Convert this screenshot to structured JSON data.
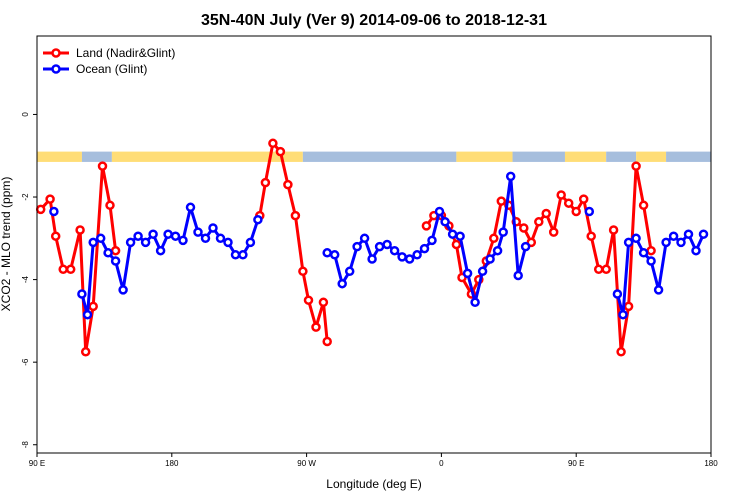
{
  "chart_data": {
    "type": "line",
    "title": "35N-40N July (Ver 9)   2014-09-06 to 2018-12-31",
    "xlabel": "Longitude (deg E)",
    "ylabel": "XCO2 - MLO trend (ppm)",
    "xlim": [
      90,
      450
    ],
    "ylim": [
      -8.2,
      1.9
    ],
    "x_tick_values": [
      90,
      162,
      234,
      306,
      378,
      450
    ],
    "x_tick_labels": [
      "90 E",
      "180",
      "90 W",
      "0",
      "90 E",
      "180"
    ],
    "y_tick_values": [
      -8,
      -6,
      -4,
      -2,
      0
    ],
    "y_tick_labels": [
      "-8",
      "-6",
      "-4",
      "-2",
      "0"
    ],
    "legend_position": "top-left",
    "land_sea_mask": {
      "y_top": -0.9,
      "y_bottom": -1.15,
      "land_color": "#FFDD77",
      "ocean_color": "#A6BEDD",
      "segments": [
        {
          "kind": "land",
          "x0": 90,
          "x1": 114
        },
        {
          "kind": "ocean",
          "x0": 114,
          "x1": 130
        },
        {
          "kind": "land",
          "x0": 130,
          "x1": 232
        },
        {
          "kind": "ocean",
          "x0": 232,
          "x1": 314
        },
        {
          "kind": "land",
          "x0": 314,
          "x1": 344
        },
        {
          "kind": "ocean",
          "x0": 344,
          "x1": 372
        },
        {
          "kind": "land",
          "x0": 372,
          "x1": 394
        },
        {
          "kind": "ocean",
          "x0": 394,
          "x1": 410
        },
        {
          "kind": "land",
          "x0": 410,
          "x1": 426
        },
        {
          "kind": "ocean",
          "x0": 426,
          "x1": 450
        }
      ]
    },
    "series": [
      {
        "name": "Land (Nadir&Glint)",
        "color": "#FF0000",
        "points": [
          [
            92,
            -2.3
          ],
          [
            97,
            -2.05
          ],
          [
            100,
            -2.95
          ],
          [
            104,
            -3.75
          ],
          [
            108,
            -3.75
          ],
          [
            113,
            -2.8
          ],
          [
            116,
            -5.75
          ],
          [
            120,
            -4.65
          ],
          [
            125,
            -1.25
          ],
          [
            129,
            -2.2
          ],
          [
            132,
            -3.3
          ],
          [
            209,
            -2.45
          ],
          [
            212,
            -1.65
          ],
          [
            216,
            -0.7
          ],
          [
            220,
            -0.9
          ],
          [
            224,
            -1.7
          ],
          [
            228,
            -2.45
          ],
          [
            232,
            -3.8
          ],
          [
            235,
            -4.5
          ],
          [
            239,
            -5.15
          ],
          [
            243,
            -4.55
          ],
          [
            245,
            -5.5
          ],
          [
            298,
            -2.7
          ],
          [
            302,
            -2.45
          ],
          [
            306,
            -2.45
          ],
          [
            310,
            -2.7
          ],
          [
            314,
            -3.15
          ],
          [
            317,
            -3.95
          ],
          [
            322,
            -4.35
          ],
          [
            326,
            -4.0
          ],
          [
            330,
            -3.55
          ],
          [
            334,
            -3.0
          ],
          [
            338,
            -2.1
          ],
          [
            342,
            -2.2
          ],
          [
            346,
            -2.6
          ],
          [
            350,
            -2.75
          ],
          [
            354,
            -3.1
          ],
          [
            358,
            -2.6
          ],
          [
            362,
            -2.4
          ],
          [
            366,
            -2.85
          ],
          [
            370,
            -1.95
          ],
          [
            374,
            -2.15
          ],
          [
            378,
            -2.35
          ],
          [
            382,
            -2.05
          ],
          [
            386,
            -2.95
          ],
          [
            390,
            -3.75
          ],
          [
            394,
            -3.75
          ],
          [
            398,
            -2.8
          ],
          [
            402,
            -5.75
          ],
          [
            406,
            -4.65
          ],
          [
            410,
            -1.25
          ],
          [
            414,
            -2.2
          ],
          [
            418,
            -3.3
          ]
        ]
      },
      {
        "name": "Ocean (Glint)",
        "color": "#0000FF",
        "points": [
          [
            99,
            -2.35
          ],
          [
            114,
            -4.35
          ],
          [
            117,
            -4.85
          ],
          [
            120,
            -3.1
          ],
          [
            124,
            -3.0
          ],
          [
            128,
            -3.35
          ],
          [
            132,
            -3.55
          ],
          [
            136,
            -4.25
          ],
          [
            140,
            -3.1
          ],
          [
            144,
            -2.95
          ],
          [
            148,
            -3.1
          ],
          [
            152,
            -2.9
          ],
          [
            156,
            -3.3
          ],
          [
            160,
            -2.9
          ],
          [
            164,
            -2.95
          ],
          [
            168,
            -3.05
          ],
          [
            172,
            -2.25
          ],
          [
            176,
            -2.85
          ],
          [
            180,
            -3.0
          ],
          [
            184,
            -2.75
          ],
          [
            188,
            -3.0
          ],
          [
            192,
            -3.1
          ],
          [
            196,
            -3.4
          ],
          [
            200,
            -3.4
          ],
          [
            204,
            -3.1
          ],
          [
            208,
            -2.55
          ],
          [
            245,
            -3.35
          ],
          [
            249,
            -3.4
          ],
          [
            253,
            -4.1
          ],
          [
            257,
            -3.8
          ],
          [
            261,
            -3.2
          ],
          [
            265,
            -3.0
          ],
          [
            269,
            -3.5
          ],
          [
            273,
            -3.2
          ],
          [
            277,
            -3.15
          ],
          [
            281,
            -3.3
          ],
          [
            285,
            -3.45
          ],
          [
            289,
            -3.5
          ],
          [
            293,
            -3.4
          ],
          [
            297,
            -3.25
          ],
          [
            301,
            -3.05
          ],
          [
            305,
            -2.35
          ],
          [
            308,
            -2.6
          ],
          [
            312,
            -2.9
          ],
          [
            316,
            -2.95
          ],
          [
            320,
            -3.85
          ],
          [
            324,
            -4.55
          ],
          [
            328,
            -3.8
          ],
          [
            332,
            -3.5
          ],
          [
            336,
            -3.3
          ],
          [
            339,
            -2.85
          ],
          [
            343,
            -1.5
          ],
          [
            347,
            -3.9
          ],
          [
            351,
            -3.2
          ],
          [
            385,
            -2.35
          ],
          [
            400,
            -4.35
          ],
          [
            403,
            -4.85
          ],
          [
            406,
            -3.1
          ],
          [
            410,
            -3.0
          ],
          [
            414,
            -3.35
          ],
          [
            418,
            -3.55
          ],
          [
            422,
            -4.25
          ],
          [
            426,
            -3.1
          ],
          [
            430,
            -2.95
          ],
          [
            434,
            -3.1
          ],
          [
            438,
            -2.9
          ],
          [
            442,
            -3.3
          ],
          [
            446,
            -2.9
          ]
        ]
      }
    ]
  }
}
